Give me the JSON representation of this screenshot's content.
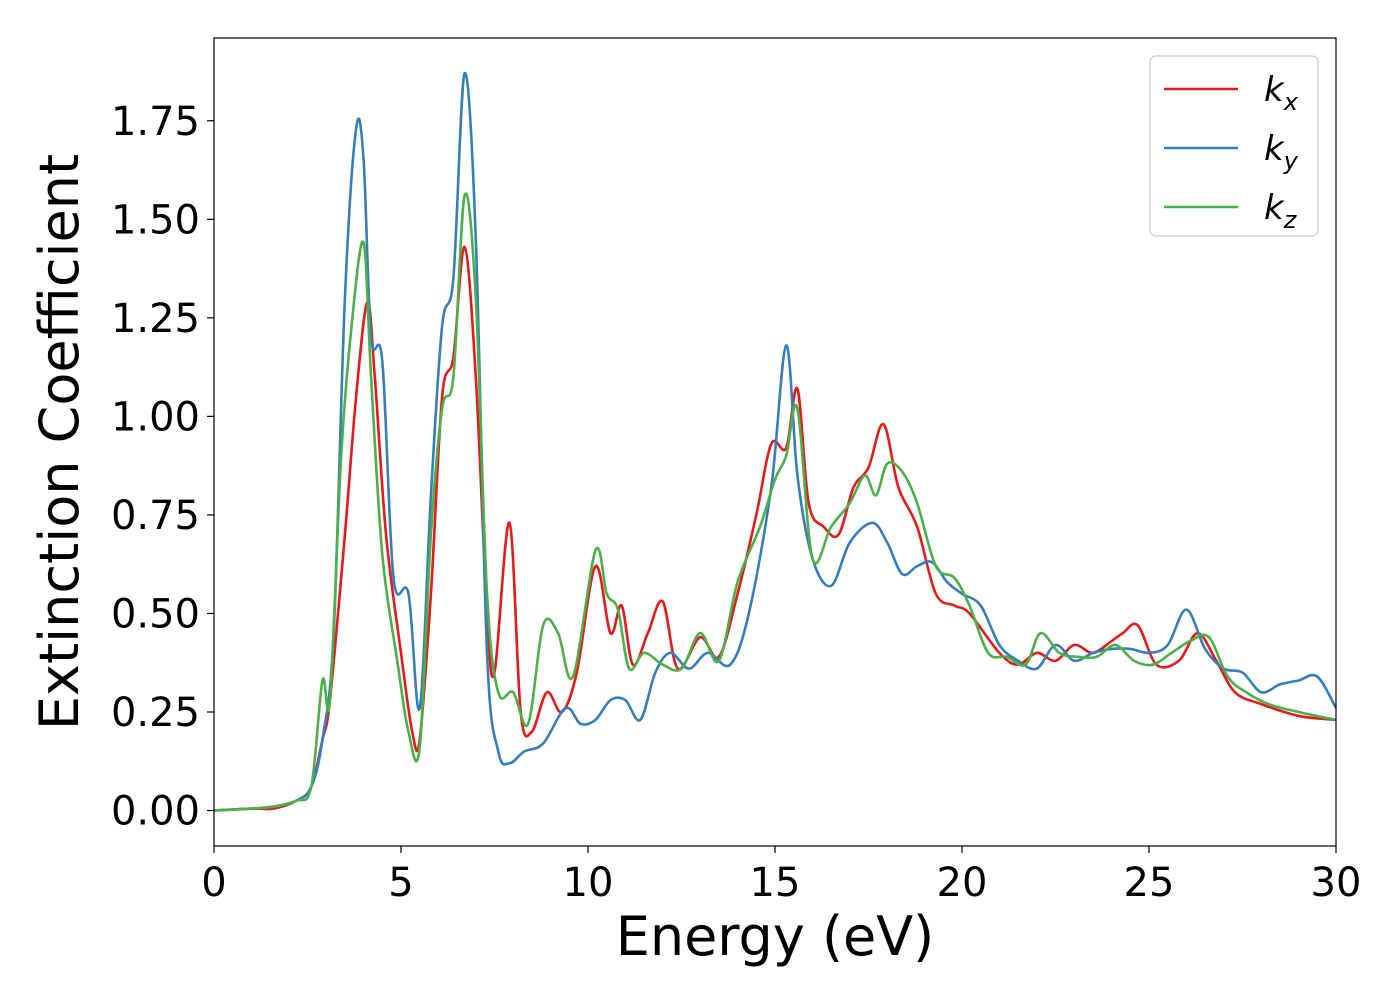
{
  "chart_data": {
    "type": "line",
    "title": "",
    "xlabel": "Energy (eV)",
    "ylabel": "Extinction Coefficient",
    "xlim": [
      0,
      30
    ],
    "ylim": [
      -0.09,
      1.96
    ],
    "xticks": [
      0,
      5,
      10,
      15,
      20,
      25,
      30
    ],
    "xtick_labels": [
      "0",
      "5",
      "10",
      "15",
      "20",
      "25",
      "30"
    ],
    "yticks": [
      0.0,
      0.25,
      0.5,
      0.75,
      1.0,
      1.25,
      1.5,
      1.75
    ],
    "ytick_labels": [
      "0.00",
      "0.25",
      "0.50",
      "0.75",
      "1.00",
      "1.25",
      "1.50",
      "1.75"
    ],
    "grid": false,
    "legend_position": "top-right",
    "series": [
      {
        "name": "k_x",
        "label_main": "k",
        "label_sub": "x",
        "color": "#e41a1c",
        "x": [
          0,
          1,
          1.6,
          2.2,
          2.6,
          2.9,
          3.1,
          3.5,
          3.8,
          4.1,
          4.3,
          4.6,
          5.0,
          5.3,
          5.5,
          5.8,
          6.1,
          6.4,
          6.7,
          7.0,
          7.3,
          7.5,
          7.9,
          8.2,
          8.5,
          8.9,
          9.3,
          9.7,
          10.2,
          10.6,
          10.9,
          11.2,
          11.6,
          12.0,
          12.4,
          13.0,
          13.5,
          14.0,
          14.5,
          14.9,
          15.3,
          15.6,
          15.9,
          16.3,
          16.7,
          17.1,
          17.5,
          17.9,
          18.3,
          18.8,
          19.3,
          19.8,
          20.2,
          21.0,
          21.5,
          22.0,
          22.5,
          23.0,
          23.5,
          24.0,
          24.3,
          24.7,
          25.2,
          25.8,
          26.3,
          26.8,
          27.3,
          28.0,
          29.0,
          30.0
        ],
        "values": [
          0.0,
          0.005,
          0.005,
          0.025,
          0.06,
          0.18,
          0.28,
          0.7,
          1.05,
          1.29,
          1.1,
          0.7,
          0.4,
          0.2,
          0.18,
          0.55,
          1.05,
          1.15,
          1.43,
          1.1,
          0.5,
          0.35,
          0.73,
          0.25,
          0.2,
          0.3,
          0.25,
          0.35,
          0.62,
          0.45,
          0.52,
          0.37,
          0.45,
          0.53,
          0.36,
          0.44,
          0.39,
          0.55,
          0.75,
          0.93,
          0.92,
          1.07,
          0.78,
          0.72,
          0.7,
          0.82,
          0.87,
          0.98,
          0.82,
          0.72,
          0.55,
          0.52,
          0.5,
          0.4,
          0.37,
          0.4,
          0.38,
          0.42,
          0.4,
          0.43,
          0.45,
          0.47,
          0.37,
          0.38,
          0.45,
          0.38,
          0.3,
          0.27,
          0.24,
          0.23
        ]
      },
      {
        "name": "k_y",
        "label_main": "k",
        "label_sub": "y",
        "color": "#377eb8",
        "x": [
          0,
          1,
          1.6,
          2.2,
          2.6,
          2.9,
          3.2,
          3.5,
          3.8,
          4.0,
          4.2,
          4.5,
          4.8,
          5.2,
          5.5,
          5.8,
          6.1,
          6.4,
          6.7,
          7.0,
          7.3,
          7.6,
          7.9,
          8.3,
          8.8,
          9.4,
          9.8,
          10.2,
          10.6,
          11.0,
          11.4,
          11.8,
          12.2,
          12.7,
          13.2,
          13.8,
          14.3,
          14.9,
          15.3,
          15.6,
          16.0,
          16.5,
          17.0,
          17.6,
          18.0,
          18.4,
          18.8,
          19.2,
          19.6,
          20.0,
          20.5,
          21.0,
          21.5,
          22.0,
          22.5,
          23.0,
          23.5,
          24.0,
          24.5,
          25.0,
          25.5,
          26.0,
          26.5,
          27.0,
          27.5,
          28.0,
          28.5,
          29.0,
          29.5,
          30.0
        ],
        "values": [
          0.0,
          0.005,
          0.01,
          0.025,
          0.06,
          0.18,
          0.45,
          1.3,
          1.73,
          1.65,
          1.2,
          1.14,
          0.59,
          0.55,
          0.26,
          0.8,
          1.23,
          1.35,
          1.87,
          1.45,
          0.4,
          0.15,
          0.12,
          0.15,
          0.17,
          0.26,
          0.22,
          0.23,
          0.28,
          0.28,
          0.23,
          0.35,
          0.4,
          0.36,
          0.4,
          0.37,
          0.5,
          0.82,
          1.18,
          0.85,
          0.64,
          0.57,
          0.68,
          0.73,
          0.68,
          0.6,
          0.62,
          0.63,
          0.58,
          0.55,
          0.52,
          0.42,
          0.38,
          0.36,
          0.42,
          0.38,
          0.4,
          0.41,
          0.41,
          0.4,
          0.42,
          0.51,
          0.41,
          0.36,
          0.35,
          0.3,
          0.32,
          0.33,
          0.34,
          0.26
        ]
      },
      {
        "name": "k_z",
        "label_main": "k",
        "label_sub": "z",
        "color": "#4daf4a",
        "x": [
          0,
          1,
          1.6,
          2.2,
          2.6,
          2.9,
          3.1,
          3.4,
          3.7,
          4.0,
          4.2,
          4.5,
          4.9,
          5.2,
          5.5,
          5.8,
          6.1,
          6.4,
          6.7,
          7.0,
          7.3,
          7.6,
          8.0,
          8.4,
          8.8,
          9.2,
          9.6,
          10.2,
          10.5,
          10.8,
          11.1,
          11.5,
          12.0,
          12.5,
          13.0,
          13.5,
          14.0,
          14.6,
          15.0,
          15.3,
          15.6,
          16.0,
          16.5,
          17.0,
          17.4,
          17.7,
          18.0,
          18.4,
          18.8,
          19.3,
          19.8,
          20.2,
          20.7,
          21.2,
          21.7,
          22.1,
          22.6,
          23.1,
          23.6,
          24.1,
          24.6,
          25.1,
          25.6,
          26.1,
          26.6,
          27.1,
          27.6,
          28.2,
          29.0,
          30.0
        ],
        "values": [
          0.0,
          0.005,
          0.01,
          0.025,
          0.06,
          0.33,
          0.28,
          0.9,
          1.25,
          1.44,
          1.1,
          0.65,
          0.38,
          0.2,
          0.16,
          0.7,
          1.02,
          1.1,
          1.56,
          1.3,
          0.55,
          0.3,
          0.3,
          0.22,
          0.47,
          0.45,
          0.34,
          0.66,
          0.55,
          0.51,
          0.36,
          0.4,
          0.37,
          0.36,
          0.45,
          0.38,
          0.58,
          0.72,
          0.84,
          0.9,
          1.02,
          0.64,
          0.72,
          0.78,
          0.85,
          0.8,
          0.88,
          0.86,
          0.78,
          0.62,
          0.59,
          0.52,
          0.4,
          0.39,
          0.37,
          0.45,
          0.4,
          0.39,
          0.39,
          0.42,
          0.38,
          0.37,
          0.4,
          0.43,
          0.44,
          0.34,
          0.3,
          0.27,
          0.25,
          0.23
        ]
      }
    ]
  }
}
